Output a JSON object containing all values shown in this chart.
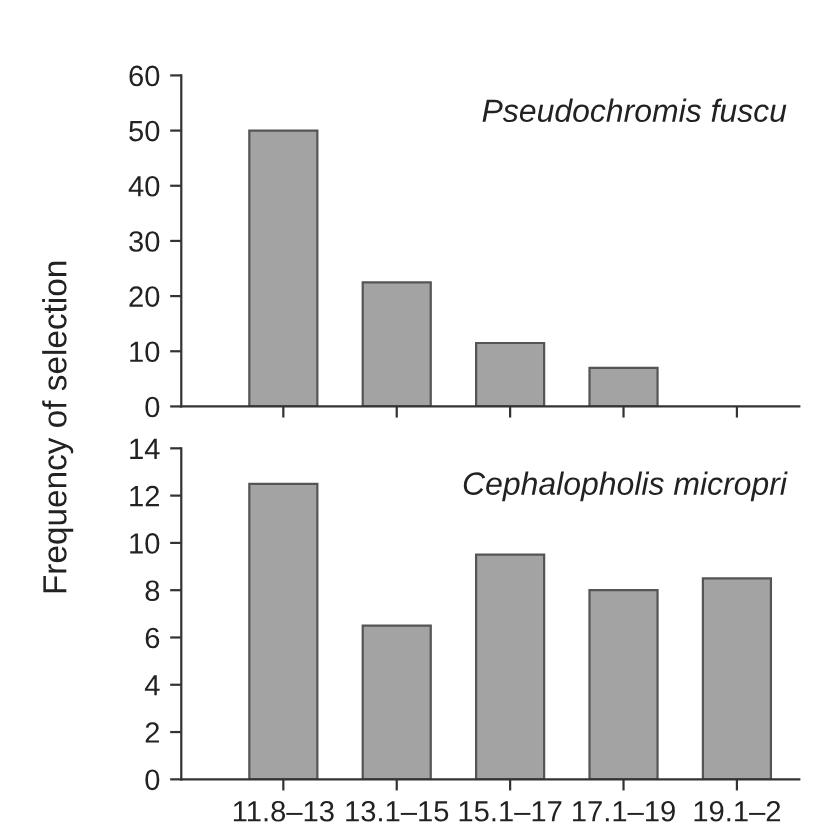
{
  "chart_data": [
    {
      "type": "bar",
      "title": "Pseudochromis fuscu",
      "ylabel": "Frequency of selection",
      "categories": [
        null,
        null,
        null,
        null,
        null
      ],
      "values": [
        50,
        22.5,
        11.5,
        7,
        null
      ],
      "color": "#a3a3a3",
      "ylim": [
        0,
        60
      ],
      "yticks": [
        0,
        10,
        20,
        30,
        40,
        50,
        60
      ],
      "tick_labels": "y",
      "grid": false
    },
    {
      "type": "bar",
      "title": "Cephalopholis micropri",
      "categories": [
        "11.8–13",
        "13.1–15",
        "15.1–17",
        "17.1–19",
        "19.1–2"
      ],
      "values": [
        12.5,
        6.5,
        9.5,
        8,
        8.5
      ],
      "color": "#a3a3a3",
      "ylim": [
        0,
        14
      ],
      "yticks": [
        0,
        2,
        4,
        6,
        8,
        10,
        12,
        14
      ],
      "grid": false
    }
  ]
}
